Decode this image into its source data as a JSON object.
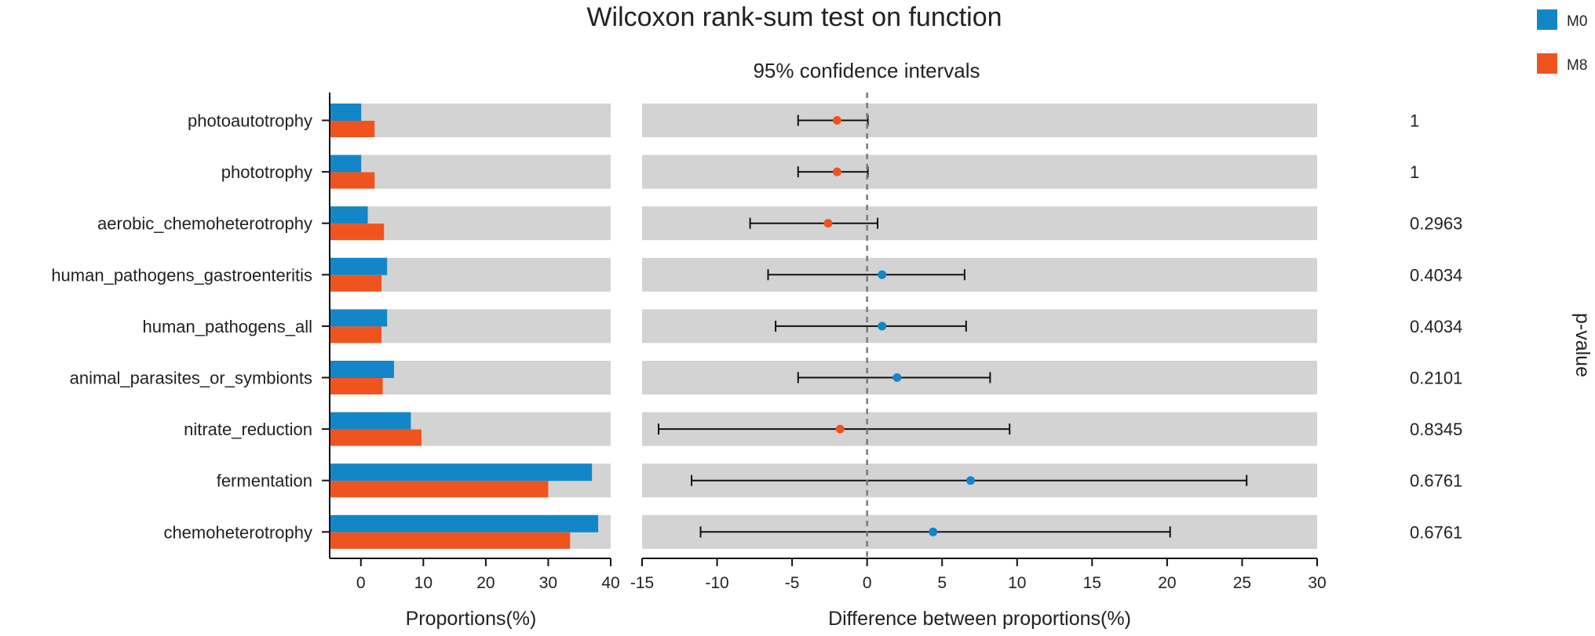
{
  "chart_data": {
    "type": "bar",
    "title": "Wilcoxon rank-sum test on function",
    "ci_title": "95% confidence intervals",
    "legend": [
      {
        "name": "M0",
        "color": "#1386C8"
      },
      {
        "name": "M8",
        "color": "#F0541E"
      }
    ],
    "categories": [
      "photoautotrophy",
      "phototrophy",
      "aerobic_chemoheterotrophy",
      "human_pathogens_gastroenteritis",
      "human_pathogens_all",
      "animal_parasites_or_symbionts",
      "nitrate_reduction",
      "fermentation",
      "chemoheterotrophy"
    ],
    "series": [
      {
        "name": "M0",
        "values": [
          0.05,
          0.05,
          1.1,
          4.2,
          4.2,
          5.3,
          8.0,
          37.0,
          38.0
        ]
      },
      {
        "name": "M8",
        "values": [
          2.2,
          2.2,
          3.7,
          3.3,
          3.3,
          3.5,
          9.7,
          30.0,
          33.5
        ]
      }
    ],
    "left_xlabel": "Proportions(%)",
    "left_xticks": [
      "0",
      "10",
      "20",
      "30",
      "40"
    ],
    "left_xlim": [
      -5,
      40
    ],
    "differences": [
      {
        "estimate": -2.0,
        "lower": -4.6,
        "upper": 0.05,
        "group": "M8"
      },
      {
        "estimate": -2.0,
        "lower": -4.6,
        "upper": 0.05,
        "group": "M8"
      },
      {
        "estimate": -2.6,
        "lower": -7.8,
        "upper": 0.7,
        "group": "M8"
      },
      {
        "estimate": 1.0,
        "lower": -6.6,
        "upper": 6.5,
        "group": "M0"
      },
      {
        "estimate": 1.0,
        "lower": -6.1,
        "upper": 6.6,
        "group": "M0"
      },
      {
        "estimate": 2.0,
        "lower": -4.6,
        "upper": 8.2,
        "group": "M0"
      },
      {
        "estimate": -1.8,
        "lower": -13.9,
        "upper": 9.5,
        "group": "M8"
      },
      {
        "estimate": 6.9,
        "lower": -11.7,
        "upper": 25.3,
        "group": "M0"
      },
      {
        "estimate": 4.4,
        "lower": -11.1,
        "upper": 20.2,
        "group": "M0"
      }
    ],
    "right_xlabel": "Difference between proportions(%)",
    "right_xticks": [
      "-15",
      "-10",
      "-5",
      "0",
      "5",
      "10",
      "15",
      "20",
      "25",
      "30"
    ],
    "right_xlim": [
      -15,
      30
    ],
    "p_values": [
      "1",
      "1",
      "0.2963",
      "0.4034",
      "0.4034",
      "0.2101",
      "0.8345",
      "0.6761",
      "0.6761"
    ],
    "p_label": "p-value"
  }
}
